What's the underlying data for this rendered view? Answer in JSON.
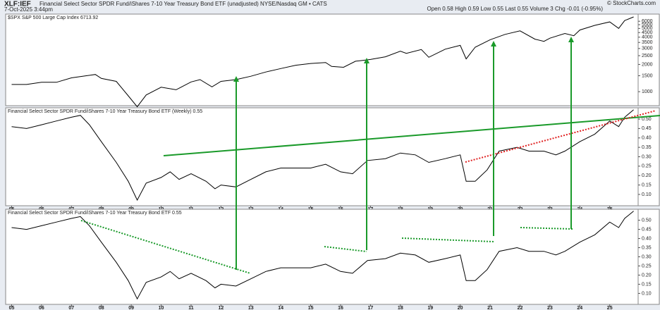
{
  "header": {
    "symbol": "XLF:IEF",
    "title": "Financial Select Sector SPDR Fund/iShares 7-10 Year Treasury Bond ETF (unadjusted) NYSE/Nasdaq GM • CATS",
    "date": "7-Oct-2025 3:44pm",
    "quote": "Open 0.58 High 0.59 Low 0.55 Last 0.55 Volume 3 Chg -0.01 (-0.95%)",
    "brand": "© StockCharts.com"
  },
  "chart_data": [
    {
      "type": "line",
      "title": "$SPX S&P 500 Large Cap Index 6713.92",
      "log": true,
      "x": [
        2005,
        2005.5,
        2006,
        2006.5,
        2007,
        2007.5,
        2007.8,
        2008,
        2008.5,
        2008.9,
        2009.2,
        2009.5,
        2010,
        2010.5,
        2011,
        2011.3,
        2011.7,
        2012,
        2012.5,
        2013,
        2013.5,
        2014,
        2014.5,
        2015,
        2015.5,
        2015.7,
        2016.1,
        2016.5,
        2017,
        2017.5,
        2018,
        2018.2,
        2018.7,
        2018.95,
        2019.5,
        2020,
        2020.2,
        2020.5,
        2021,
        2021.5,
        2022,
        2022.5,
        2022.8,
        2023,
        2023.5,
        2023.8,
        2024,
        2024.5,
        2025,
        2025.3,
        2025.5,
        2025.8
      ],
      "series": [
        {
          "name": "$SPX",
          "color": "#000000",
          "values": [
            1200,
            1200,
            1270,
            1270,
            1420,
            1500,
            1550,
            1400,
            1300,
            900,
            680,
            920,
            1120,
            1050,
            1280,
            1360,
            1130,
            1300,
            1360,
            1480,
            1650,
            1800,
            1960,
            2050,
            2100,
            1900,
            1860,
            2170,
            2270,
            2430,
            2800,
            2650,
            2920,
            2400,
            2950,
            3250,
            2300,
            3100,
            3750,
            4300,
            4700,
            3800,
            3600,
            3900,
            4400,
            4150,
            4800,
            5400,
            5900,
            5000,
            6100,
            6700
          ]
        }
      ],
      "xlim": [
        2004.8,
        2025.95
      ],
      "ylim": [
        700,
        7200
      ],
      "yticks": [
        1000,
        1500,
        2000,
        2500,
        3000,
        3500,
        4000,
        4500,
        5000,
        5500,
        6000
      ]
    },
    {
      "type": "line",
      "title": "Financial Select Sector SPDR Fund/iShares 7-10 Year Treasury Bond ETF (Weekly) 0.55",
      "x": [
        2005,
        2005.5,
        2006,
        2006.5,
        2007,
        2007.3,
        2007.6,
        2008,
        2008.5,
        2008.9,
        2009.2,
        2009.5,
        2010,
        2010.3,
        2010.6,
        2011,
        2011.5,
        2011.8,
        2012,
        2012.5,
        2013,
        2013.5,
        2014,
        2014.5,
        2015,
        2015.5,
        2016,
        2016.4,
        2016.9,
        2017.5,
        2018,
        2018.5,
        2018.95,
        2019.5,
        2020,
        2020.2,
        2020.5,
        2020.9,
        2021.3,
        2021.9,
        2022.3,
        2022.8,
        2023.2,
        2023.5,
        2024,
        2024.5,
        2025,
        2025.3,
        2025.5,
        2025.8
      ],
      "series": [
        {
          "name": "XLF:IEF",
          "color": "#000000",
          "values": [
            0.46,
            0.45,
            0.47,
            0.49,
            0.51,
            0.52,
            0.47,
            0.38,
            0.27,
            0.17,
            0.07,
            0.16,
            0.19,
            0.22,
            0.18,
            0.21,
            0.17,
            0.13,
            0.15,
            0.14,
            0.18,
            0.22,
            0.24,
            0.24,
            0.24,
            0.26,
            0.22,
            0.21,
            0.28,
            0.29,
            0.32,
            0.31,
            0.27,
            0.29,
            0.31,
            0.17,
            0.17,
            0.23,
            0.33,
            0.35,
            0.33,
            0.33,
            0.31,
            0.33,
            0.38,
            0.42,
            0.49,
            0.46,
            0.51,
            0.55
          ]
        }
      ],
      "xlim": [
        2004.8,
        2025.95
      ],
      "ylim": [
        0.04,
        0.56
      ],
      "yticks": [
        {
          "value": 0.1,
          "label": "0.10"
        },
        0.15,
        {
          "value": 0.2,
          "label": "0.20"
        },
        0.25,
        {
          "value": 0.3,
          "label": "0.30"
        },
        0.35,
        {
          "value": 0.4,
          "label": "0.40"
        },
        0.45,
        {
          "value": 0.5,
          "label": "0.50"
        }
      ],
      "xticks": [
        {
          "value": 2005,
          "label": "05"
        },
        {
          "value": 2006,
          "label": "06"
        },
        {
          "value": 2007,
          "label": "07"
        },
        {
          "value": 2008,
          "label": "08"
        },
        {
          "value": 2009,
          "label": "09"
        },
        {
          "value": 2010,
          "label": "10"
        },
        {
          "value": 2011,
          "label": "11"
        },
        {
          "value": 2012,
          "label": "12"
        },
        {
          "value": 2013,
          "label": "13"
        },
        {
          "value": 2014,
          "label": "14"
        },
        {
          "value": 2015,
          "label": "15"
        },
        {
          "value": 2016,
          "label": "16"
        },
        {
          "value": 2017,
          "label": "17"
        },
        {
          "value": 2018,
          "label": "18"
        },
        {
          "value": 2019,
          "label": "19"
        },
        {
          "value": 2020,
          "label": "20"
        },
        {
          "value": 2021,
          "label": "21"
        },
        {
          "value": 2022,
          "label": "22"
        },
        {
          "value": 2023,
          "label": "23"
        },
        {
          "value": 2024,
          "label": "24"
        },
        {
          "value": 2025,
          "label": "25"
        }
      ]
    },
    {
      "type": "line",
      "title": "Financial Select Sector SPDR Fund/iShares 7-10 Year Treasury Bond ETF 0.55",
      "x": [
        2005,
        2005.5,
        2006,
        2006.5,
        2007,
        2007.3,
        2007.6,
        2008,
        2008.5,
        2008.9,
        2009.2,
        2009.5,
        2010,
        2010.3,
        2010.6,
        2011,
        2011.5,
        2011.8,
        2012,
        2012.5,
        2013,
        2013.5,
        2014,
        2014.5,
        2015,
        2015.5,
        2016,
        2016.4,
        2016.9,
        2017.5,
        2018,
        2018.5,
        2018.95,
        2019.5,
        2020,
        2020.2,
        2020.5,
        2020.9,
        2021.3,
        2021.9,
        2022.3,
        2022.8,
        2023.2,
        2023.5,
        2024,
        2024.5,
        2025,
        2025.3,
        2025.5,
        2025.8
      ],
      "series": [
        {
          "name": "XLF:IEF",
          "color": "#000000",
          "values": [
            0.46,
            0.45,
            0.47,
            0.49,
            0.51,
            0.52,
            0.47,
            0.38,
            0.27,
            0.17,
            0.07,
            0.16,
            0.19,
            0.22,
            0.18,
            0.21,
            0.17,
            0.13,
            0.15,
            0.14,
            0.18,
            0.22,
            0.24,
            0.24,
            0.24,
            0.26,
            0.22,
            0.21,
            0.28,
            0.29,
            0.32,
            0.31,
            0.27,
            0.29,
            0.31,
            0.17,
            0.17,
            0.23,
            0.33,
            0.35,
            0.33,
            0.33,
            0.31,
            0.33,
            0.38,
            0.42,
            0.49,
            0.46,
            0.51,
            0.55
          ]
        }
      ],
      "xlim": [
        2004.8,
        2025.95
      ],
      "ylim": [
        0.04,
        0.56
      ],
      "yticks": [
        {
          "value": 0.1,
          "label": "0.10"
        },
        0.15,
        {
          "value": 0.2,
          "label": "0.20"
        },
        0.25,
        {
          "value": 0.3,
          "label": "0.30"
        },
        0.35,
        {
          "value": 0.4,
          "label": "0.40"
        },
        0.45,
        {
          "value": 0.5,
          "label": "0.50"
        }
      ],
      "xticks": [
        {
          "value": 2005,
          "label": "05"
        },
        {
          "value": 2006,
          "label": "06"
        },
        {
          "value": 2007,
          "label": "07"
        },
        {
          "value": 2008,
          "label": "08"
        },
        {
          "value": 2009,
          "label": "09"
        },
        {
          "value": 2010,
          "label": "10"
        },
        {
          "value": 2011,
          "label": "11"
        },
        {
          "value": 2012,
          "label": "12"
        },
        {
          "value": 2013,
          "label": "13"
        },
        {
          "value": 2014,
          "label": "14"
        },
        {
          "value": 2015,
          "label": "15"
        },
        {
          "value": 2016,
          "label": "16"
        },
        {
          "value": 2017,
          "label": "17"
        },
        {
          "value": 2018,
          "label": "18"
        },
        {
          "value": 2019,
          "label": "19"
        },
        {
          "value": 2020,
          "label": "20"
        },
        {
          "value": 2021,
          "label": "21"
        },
        {
          "value": 2022,
          "label": "22"
        },
        {
          "value": 2023,
          "label": "23"
        },
        {
          "value": 2024,
          "label": "24"
        },
        {
          "value": 2025,
          "label": "25"
        }
      ]
    }
  ]
}
